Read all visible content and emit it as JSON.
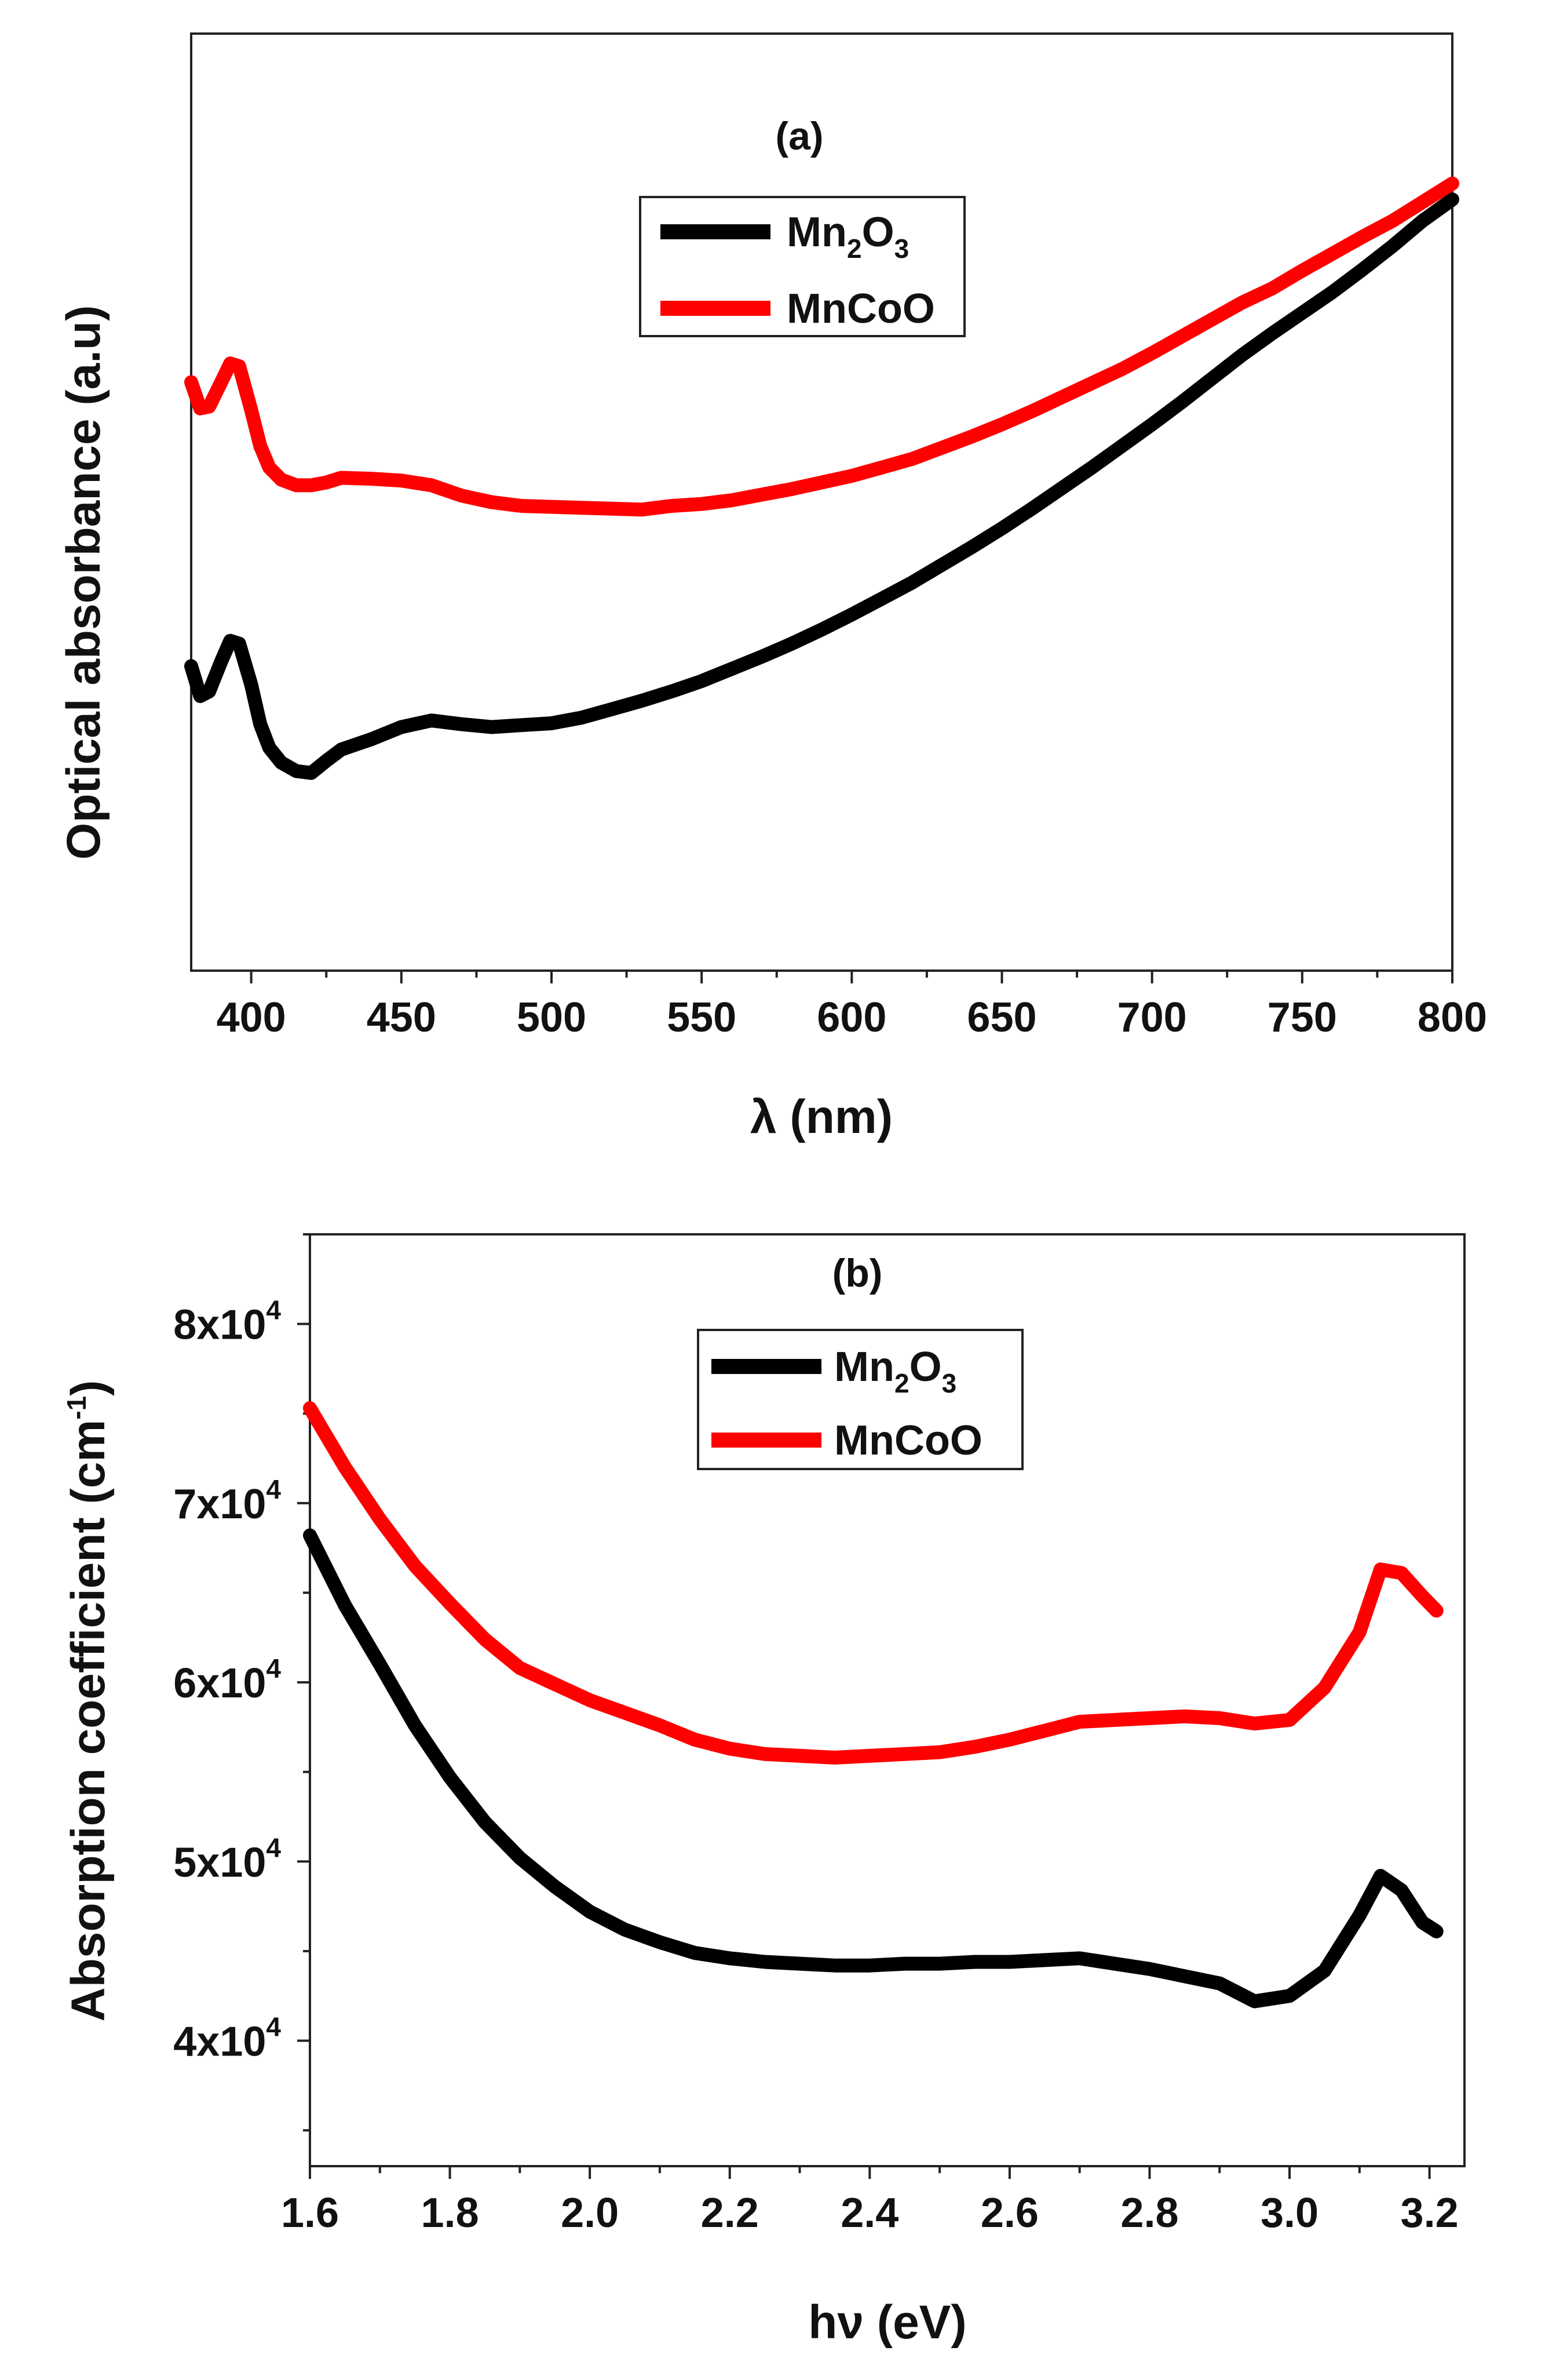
{
  "chart_data": [
    {
      "type": "line",
      "panel_label": "(a)",
      "xlabel": "λ (nm)",
      "ylabel": "Optical absorbance (a.u)",
      "xlim": [
        380,
        800
      ],
      "ylim": [
        0,
        1
      ],
      "x_ticks": [
        400,
        450,
        500,
        550,
        600,
        650,
        700,
        750,
        800
      ],
      "y_ticks_labeled": false,
      "grid": false,
      "legend_placement": "top-center",
      "series": [
        {
          "name": "Mn2O3",
          "legend": {
            "base1": "Mn",
            "sub1": "2",
            "base2": "O",
            "sub2": "3"
          },
          "color": "#000000",
          "x": [
            380,
            383,
            386,
            390,
            393,
            396,
            400,
            403,
            406,
            410,
            415,
            420,
            425,
            430,
            440,
            450,
            460,
            470,
            480,
            490,
            500,
            510,
            520,
            530,
            540,
            550,
            560,
            570,
            580,
            590,
            600,
            610,
            620,
            630,
            640,
            650,
            660,
            670,
            680,
            690,
            700,
            710,
            720,
            730,
            740,
            750,
            760,
            770,
            780,
            790,
            800
          ],
          "y": [
            0.325,
            0.293,
            0.298,
            0.33,
            0.352,
            0.349,
            0.305,
            0.263,
            0.238,
            0.222,
            0.213,
            0.211,
            0.224,
            0.236,
            0.247,
            0.26,
            0.267,
            0.263,
            0.26,
            0.262,
            0.264,
            0.27,
            0.279,
            0.288,
            0.298,
            0.309,
            0.322,
            0.335,
            0.349,
            0.364,
            0.38,
            0.397,
            0.414,
            0.433,
            0.452,
            0.472,
            0.493,
            0.515,
            0.537,
            0.56,
            0.583,
            0.607,
            0.632,
            0.657,
            0.68,
            0.702,
            0.724,
            0.748,
            0.773,
            0.8,
            0.823
          ]
        },
        {
          "name": "MnCoO",
          "legend": {
            "text": "MnCoO"
          },
          "color": "#ff0000",
          "x": [
            380,
            383,
            386,
            390,
            393,
            396,
            400,
            403,
            406,
            410,
            415,
            420,
            425,
            430,
            440,
            450,
            460,
            470,
            480,
            490,
            500,
            510,
            520,
            530,
            540,
            550,
            560,
            570,
            580,
            590,
            600,
            610,
            620,
            630,
            640,
            650,
            660,
            670,
            680,
            690,
            700,
            710,
            720,
            730,
            740,
            750,
            760,
            770,
            780,
            790,
            800
          ],
          "y": [
            0.628,
            0.6,
            0.602,
            0.628,
            0.648,
            0.645,
            0.598,
            0.56,
            0.537,
            0.524,
            0.518,
            0.518,
            0.521,
            0.526,
            0.525,
            0.523,
            0.518,
            0.507,
            0.5,
            0.496,
            0.495,
            0.494,
            0.493,
            0.492,
            0.496,
            0.498,
            0.502,
            0.508,
            0.514,
            0.521,
            0.528,
            0.537,
            0.546,
            0.558,
            0.57,
            0.583,
            0.597,
            0.612,
            0.627,
            0.642,
            0.659,
            0.677,
            0.695,
            0.713,
            0.728,
            0.747,
            0.765,
            0.783,
            0.8,
            0.82,
            0.84
          ]
        }
      ]
    },
    {
      "type": "line",
      "panel_label": "(b)",
      "xlabel": "hν (eV)",
      "ylabel": {
        "base": "Absorption coefficient (cm",
        "sup": "-1",
        "close": ")"
      },
      "xlim": [
        1.6,
        3.25
      ],
      "ylim": [
        33000,
        85000
      ],
      "x_ticks": [
        "1.6",
        "1.8",
        "2.0",
        "2.2",
        "2.4",
        "2.6",
        "2.8",
        "3.0",
        "3.2"
      ],
      "y_ticks": [
        {
          "value": 40000,
          "mantissa": "4x10",
          "exp": "4"
        },
        {
          "value": 50000,
          "mantissa": "5x10",
          "exp": "4"
        },
        {
          "value": 60000,
          "mantissa": "6x10",
          "exp": "4"
        },
        {
          "value": 70000,
          "mantissa": "7x10",
          "exp": "4"
        },
        {
          "value": 80000,
          "mantissa": "8x10",
          "exp": "4"
        }
      ],
      "y_minor_ticks": [
        35000,
        45000,
        55000,
        65000,
        75000,
        85000
      ],
      "grid": false,
      "legend_placement": "top-center",
      "series": [
        {
          "name": "Mn2O3",
          "legend": {
            "base1": "Mn",
            "sub1": "2",
            "base2": "O",
            "sub2": "3"
          },
          "color": "#000000",
          "x": [
            1.6,
            1.65,
            1.7,
            1.75,
            1.8,
            1.85,
            1.9,
            1.95,
            2.0,
            2.05,
            2.1,
            2.15,
            2.2,
            2.25,
            2.3,
            2.35,
            2.4,
            2.45,
            2.5,
            2.55,
            2.6,
            2.65,
            2.7,
            2.75,
            2.8,
            2.85,
            2.9,
            2.95,
            3.0,
            3.05,
            3.1,
            3.13,
            3.16,
            3.19,
            3.21
          ],
          "y": [
            68200,
            64300,
            61000,
            57600,
            54700,
            52200,
            50200,
            48600,
            47200,
            46200,
            45500,
            44900,
            44600,
            44400,
            44300,
            44200,
            44200,
            44300,
            44300,
            44400,
            44400,
            44500,
            44600,
            44300,
            44000,
            43600,
            43200,
            42200,
            42500,
            43900,
            47000,
            49200,
            48400,
            46600,
            46100
          ]
        },
        {
          "name": "MnCoO",
          "legend": {
            "text": "MnCoO"
          },
          "color": "#ff0000",
          "x": [
            1.6,
            1.65,
            1.7,
            1.75,
            1.8,
            1.85,
            1.9,
            1.95,
            2.0,
            2.05,
            2.1,
            2.15,
            2.2,
            2.25,
            2.3,
            2.35,
            2.4,
            2.45,
            2.5,
            2.55,
            2.6,
            2.65,
            2.7,
            2.75,
            2.8,
            2.85,
            2.9,
            2.95,
            3.0,
            3.05,
            3.1,
            3.13,
            3.16,
            3.19,
            3.21
          ],
          "y": [
            75300,
            72000,
            69100,
            66500,
            64400,
            62400,
            60800,
            59900,
            59000,
            58300,
            57600,
            56800,
            56300,
            56000,
            55900,
            55800,
            55900,
            56000,
            56100,
            56400,
            56800,
            57300,
            57800,
            57900,
            58000,
            58100,
            58000,
            57700,
            57900,
            59700,
            62800,
            66300,
            66100,
            64800,
            64000
          ]
        }
      ]
    }
  ]
}
